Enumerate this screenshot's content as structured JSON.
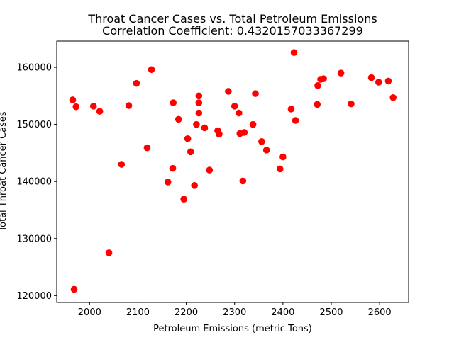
{
  "chart_data": {
    "type": "scatter",
    "title": "Throat Cancer Cases vs. Total Petroleum Emissions",
    "subtitle": "Correlation Coefficient: 0.4320157033367299",
    "xlabel": "Petroleum Emissions (metric Tons)",
    "ylabel": "Total Throat Cancer Cases",
    "xlim": [
      1932,
      2660
    ],
    "ylim": [
      118800,
      164600
    ],
    "xticks": [
      2000,
      2100,
      2200,
      2300,
      2400,
      2500,
      2600
    ],
    "yticks": [
      120000,
      130000,
      140000,
      150000,
      160000
    ],
    "grid": false,
    "marker_color": "#ff0000",
    "points": [
      {
        "x": 1965,
        "y": 154300
      },
      {
        "x": 1968,
        "y": 121100
      },
      {
        "x": 1972,
        "y": 153100
      },
      {
        "x": 2008,
        "y": 153200
      },
      {
        "x": 2021,
        "y": 152300
      },
      {
        "x": 2040,
        "y": 127500
      },
      {
        "x": 2066,
        "y": 143000
      },
      {
        "x": 2081,
        "y": 153300
      },
      {
        "x": 2097,
        "y": 157200
      },
      {
        "x": 2119,
        "y": 145900
      },
      {
        "x": 2128,
        "y": 159600
      },
      {
        "x": 2162,
        "y": 139900
      },
      {
        "x": 2172,
        "y": 142300
      },
      {
        "x": 2173,
        "y": 153800
      },
      {
        "x": 2184,
        "y": 150900
      },
      {
        "x": 2195,
        "y": 136900
      },
      {
        "x": 2203,
        "y": 147500
      },
      {
        "x": 2209,
        "y": 145200
      },
      {
        "x": 2217,
        "y": 139300
      },
      {
        "x": 2221,
        "y": 150000
      },
      {
        "x": 2226,
        "y": 155000
      },
      {
        "x": 2226,
        "y": 153800
      },
      {
        "x": 2226,
        "y": 152000
      },
      {
        "x": 2238,
        "y": 149400
      },
      {
        "x": 2248,
        "y": 142000
      },
      {
        "x": 2265,
        "y": 148900
      },
      {
        "x": 2268,
        "y": 148300
      },
      {
        "x": 2287,
        "y": 155800
      },
      {
        "x": 2300,
        "y": 153200
      },
      {
        "x": 2309,
        "y": 152000
      },
      {
        "x": 2311,
        "y": 148400
      },
      {
        "x": 2317,
        "y": 140100
      },
      {
        "x": 2320,
        "y": 148600
      },
      {
        "x": 2338,
        "y": 150000
      },
      {
        "x": 2343,
        "y": 155400
      },
      {
        "x": 2356,
        "y": 147000
      },
      {
        "x": 2366,
        "y": 145500
      },
      {
        "x": 2394,
        "y": 142200
      },
      {
        "x": 2400,
        "y": 144300
      },
      {
        "x": 2417,
        "y": 152700
      },
      {
        "x": 2423,
        "y": 162600
      },
      {
        "x": 2426,
        "y": 150700
      },
      {
        "x": 2471,
        "y": 153500
      },
      {
        "x": 2472,
        "y": 156800
      },
      {
        "x": 2478,
        "y": 157900
      },
      {
        "x": 2484,
        "y": 158000
      },
      {
        "x": 2520,
        "y": 159000
      },
      {
        "x": 2541,
        "y": 153600
      },
      {
        "x": 2583,
        "y": 158200
      },
      {
        "x": 2598,
        "y": 157400
      },
      {
        "x": 2618,
        "y": 157600
      },
      {
        "x": 2628,
        "y": 154700
      }
    ]
  }
}
